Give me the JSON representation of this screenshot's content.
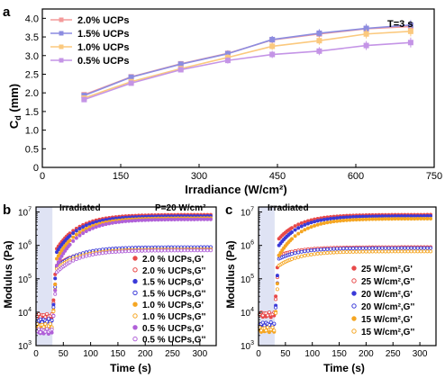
{
  "chart_data": [
    {
      "panel": "a",
      "type": "line",
      "xlabel": "Irradiance (W/cm²)",
      "ylabel_main": "C",
      "ylabel_sub": "d",
      "ylabel_unit": " (mm)",
      "annotation": "T=3 s",
      "xlim": [
        0,
        750
      ],
      "ylim": [
        0,
        4.25
      ],
      "xticks": [
        0,
        150,
        300,
        450,
        600,
        750
      ],
      "yticks": [
        0,
        0.5,
        1.0,
        1.5,
        2.0,
        2.5,
        3.0,
        3.5,
        4.0
      ],
      "ytick_labels": [
        "0",
        "0.5",
        "1.0",
        "1.5",
        "2.0",
        "2.5",
        "3.0",
        "3.5",
        "4.0"
      ],
      "x": [
        80,
        170,
        265,
        355,
        440,
        530,
        620,
        705
      ],
      "legend_position": "top-left",
      "series": [
        {
          "name": "2.0% UCPs",
          "color": "#f49a9a",
          "marker": "square",
          "values": [
            1.95,
            2.43,
            2.78,
            3.06,
            3.42,
            3.58,
            3.72,
            3.78
          ]
        },
        {
          "name": "1.5% UCPs",
          "color": "#8c8ce0",
          "marker": "square",
          "values": [
            1.93,
            2.42,
            2.77,
            3.05,
            3.43,
            3.6,
            3.73,
            3.82
          ]
        },
        {
          "name": "1.0% UCPs",
          "color": "#fbc97e",
          "marker": "square",
          "values": [
            1.86,
            2.3,
            2.65,
            2.95,
            3.25,
            3.4,
            3.58,
            3.65
          ]
        },
        {
          "name": "0.5% UCPs",
          "color": "#c494e6",
          "marker": "square",
          "values": [
            1.82,
            2.26,
            2.62,
            2.87,
            3.03,
            3.12,
            3.27,
            3.35
          ]
        }
      ]
    },
    {
      "panel": "b",
      "type": "scatter",
      "xlabel": "Time (s)",
      "ylabel": "Modulus (Pa)",
      "yscale": "log",
      "xlim": [
        0,
        330
      ],
      "ylim_exp": [
        3,
        7.15
      ],
      "xticks": [
        0,
        50,
        100,
        150,
        200,
        250,
        300
      ],
      "ytick_exponents": [
        3,
        4,
        5,
        6,
        7
      ],
      "irradiated_label": "Irradiated",
      "irradiated_start": 30,
      "annotation": "P=20 W/cm²",
      "legend_position": "bottom-right",
      "series": [
        {
          "name": "2.0 % UCPs,G'",
          "color": "#e84a4a",
          "filled": true,
          "log_levels": {
            "pre": 3.85,
            "jump": 5.9,
            "plateau": 6.92
          }
        },
        {
          "name": "2.0 % UCPs,G''",
          "color": "#e84a4a",
          "filled": false,
          "log_levels": {
            "pre": 3.9,
            "jump": 5.4,
            "plateau": 5.92
          }
        },
        {
          "name": "1.5 % UCPs,G'",
          "color": "#3a3ad8",
          "filled": true,
          "log_levels": {
            "pre": 3.7,
            "jump": 5.8,
            "plateau": 6.88
          }
        },
        {
          "name": "1.5 % UCPs,G''",
          "color": "#3a3ad8",
          "filled": false,
          "log_levels": {
            "pre": 3.75,
            "jump": 5.35,
            "plateau": 5.95
          }
        },
        {
          "name": "1.0 % UCPs,G'",
          "color": "#f5a623",
          "filled": true,
          "log_levels": {
            "pre": 3.55,
            "jump": 5.6,
            "plateau": 6.82
          }
        },
        {
          "name": "1.0 % UCPs,G''",
          "color": "#f5a623",
          "filled": false,
          "log_levels": {
            "pre": 3.6,
            "jump": 5.3,
            "plateau": 5.88
          }
        },
        {
          "name": "0.5 % UCPs,G'",
          "color": "#b060d8",
          "filled": true,
          "log_levels": {
            "pre": 3.4,
            "jump": 5.4,
            "plateau": 6.78
          }
        },
        {
          "name": "0.5 % UCPs,G''",
          "color": "#b060d8",
          "filled": false,
          "log_levels": {
            "pre": 3.45,
            "jump": 5.2,
            "plateau": 5.85
          }
        }
      ]
    },
    {
      "panel": "c",
      "type": "scatter",
      "xlabel": "Time (s)",
      "ylabel": "Modulus (Pa)",
      "yscale": "log",
      "xlim": [
        0,
        330
      ],
      "ylim_exp": [
        3,
        7.15
      ],
      "xticks": [
        0,
        50,
        100,
        150,
        200,
        250,
        300
      ],
      "ytick_exponents": [
        3,
        4,
        5,
        6,
        7
      ],
      "irradiated_label": "Irradiated",
      "irradiated_start": 30,
      "legend_position": "bottom-right",
      "series": [
        {
          "name": "25 W/cm²,G'",
          "color": "#e84a4a",
          "filled": true,
          "log_levels": {
            "pre": 3.9,
            "jump": 6.2,
            "plateau": 6.92
          }
        },
        {
          "name": "25 W/cm²,G''",
          "color": "#e84a4a",
          "filled": false,
          "log_levels": {
            "pre": 3.95,
            "jump": 5.7,
            "plateau": 5.95
          }
        },
        {
          "name": "20 W/cm²,G'",
          "color": "#3a3ad8",
          "filled": true,
          "log_levels": {
            "pre": 3.6,
            "jump": 6.0,
            "plateau": 6.88
          }
        },
        {
          "name": "20 W/cm²,G''",
          "color": "#3a3ad8",
          "filled": false,
          "log_levels": {
            "pre": 3.65,
            "jump": 5.6,
            "plateau": 5.92
          }
        },
        {
          "name": "15 W/cm²,G'",
          "color": "#f5a623",
          "filled": true,
          "log_levels": {
            "pre": 3.45,
            "jump": 5.7,
            "plateau": 6.8
          }
        },
        {
          "name": "15 W/cm²,G''",
          "color": "#f5a623",
          "filled": false,
          "log_levels": {
            "pre": 3.5,
            "jump": 5.4,
            "plateau": 5.82
          }
        }
      ]
    }
  ]
}
